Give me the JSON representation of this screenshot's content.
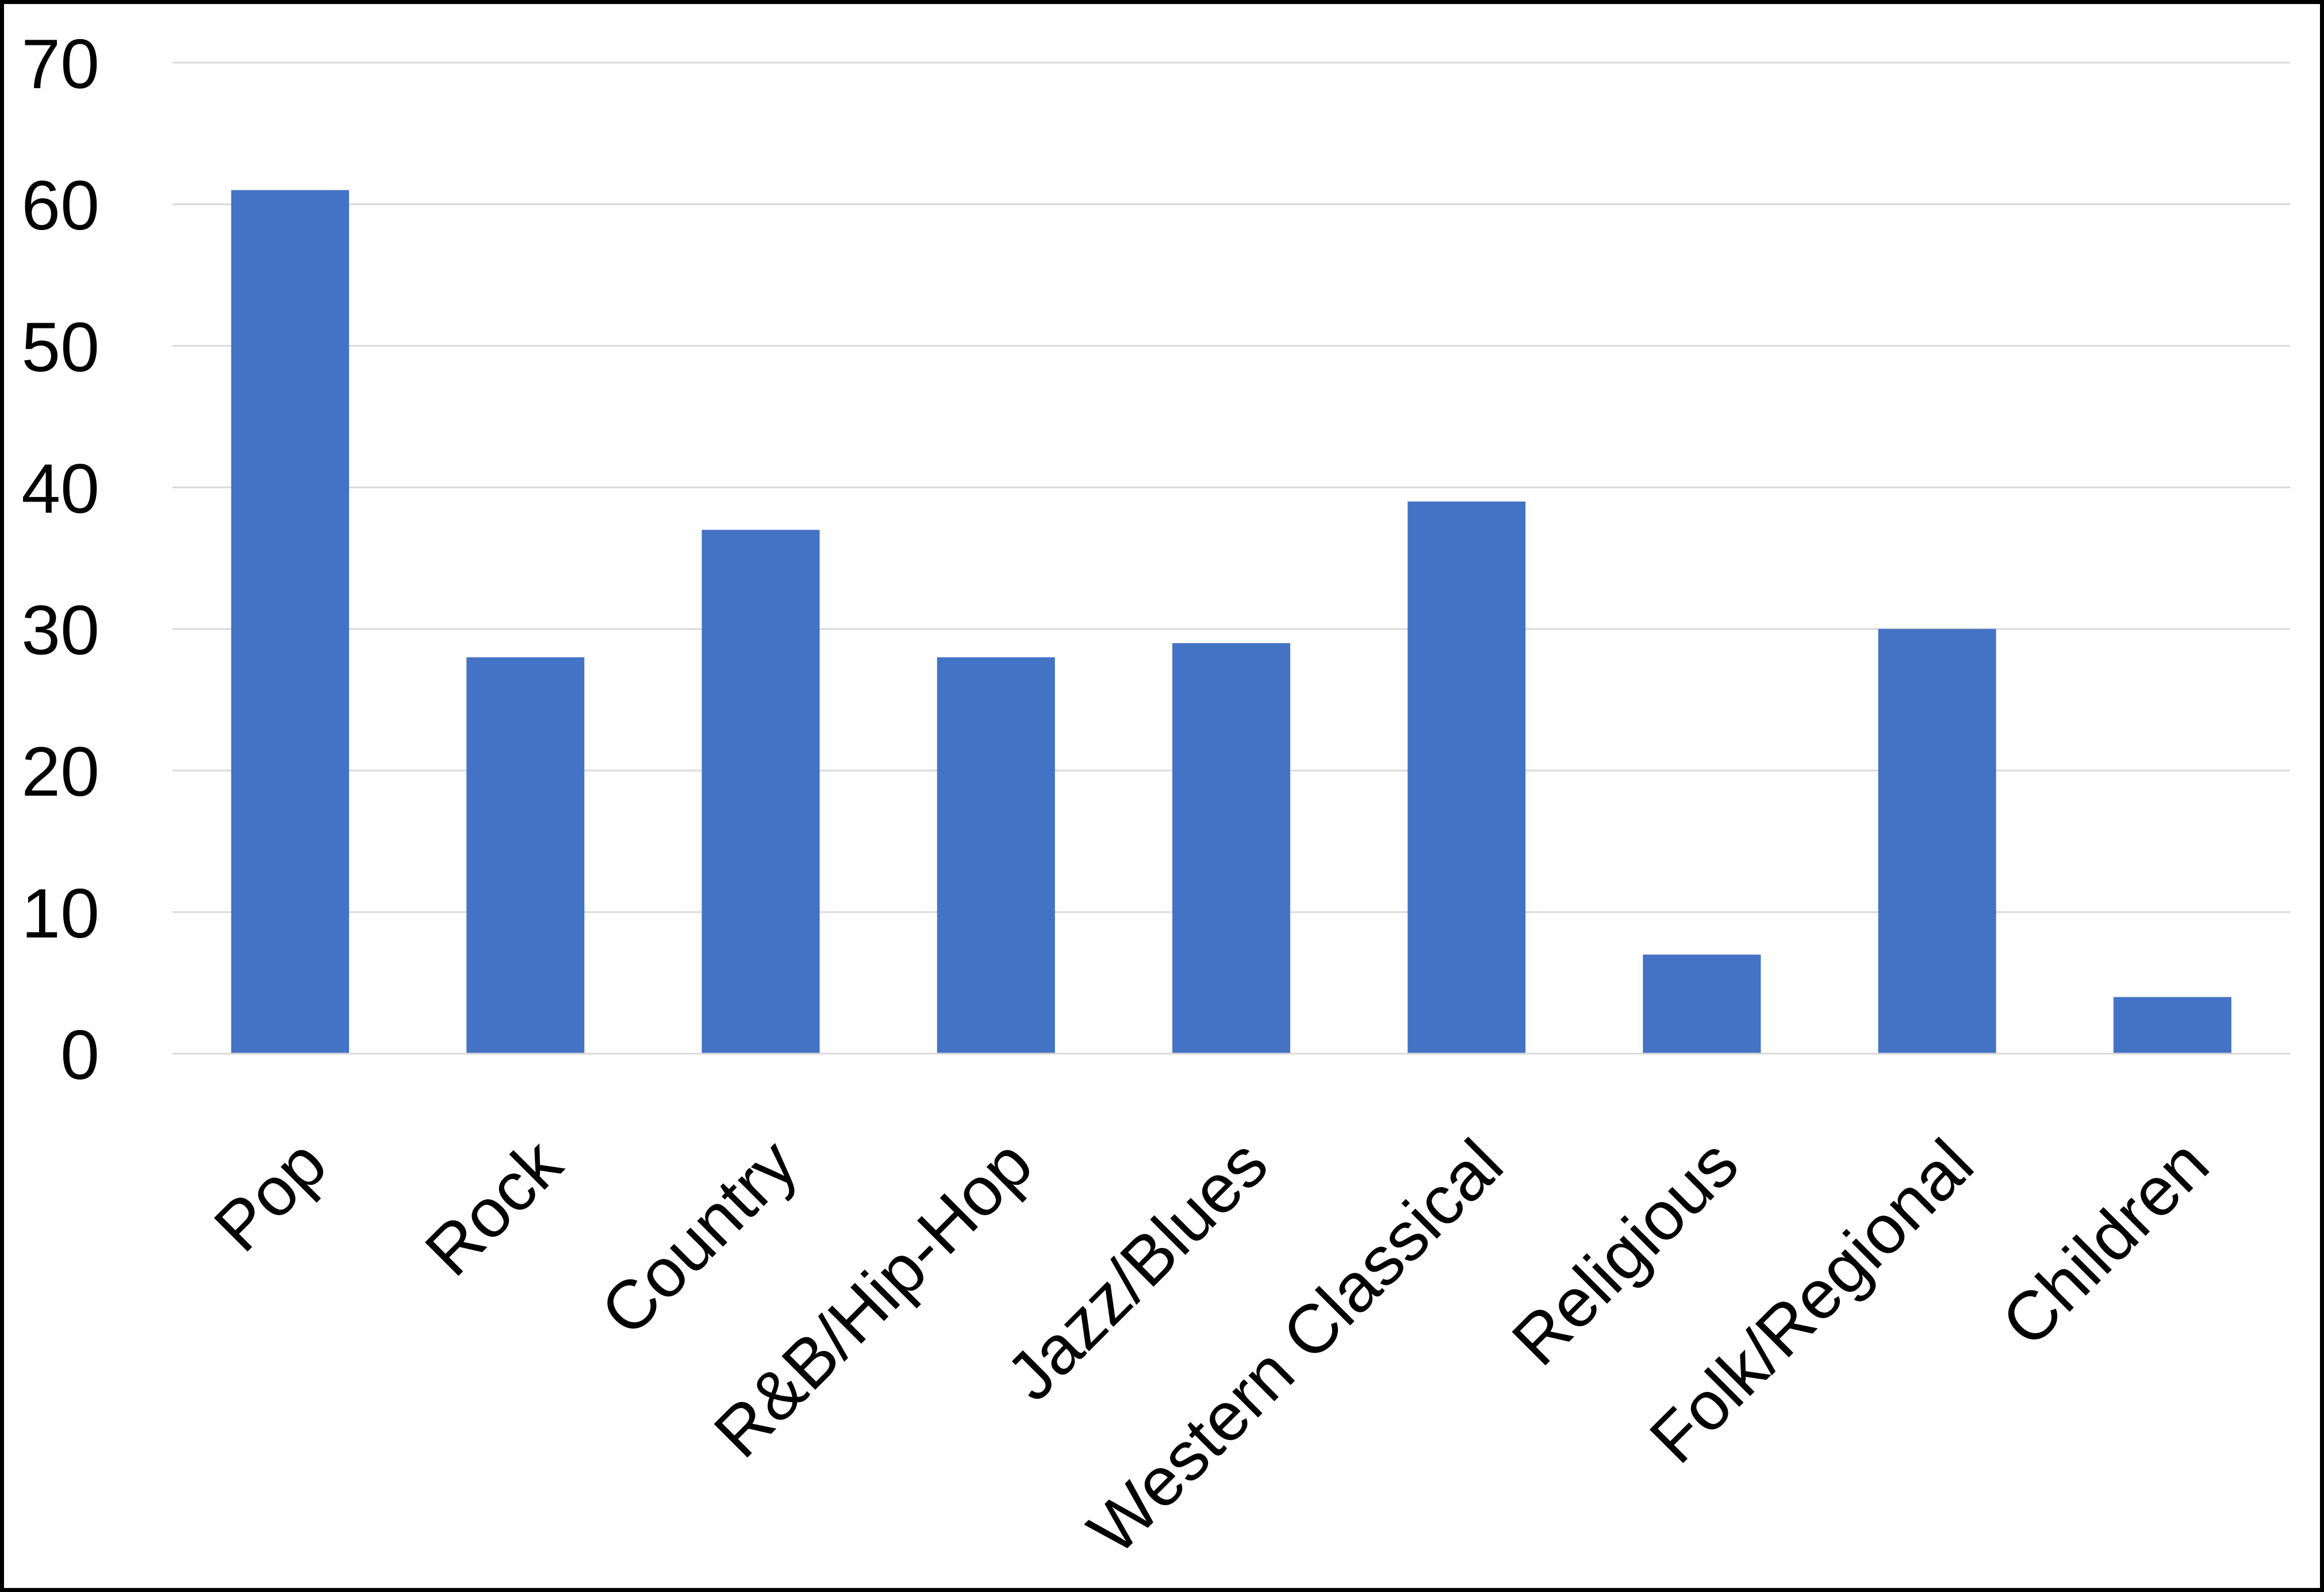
{
  "chart_data": {
    "type": "bar",
    "categories": [
      "Pop",
      "Rock",
      "Country",
      "R&B/Hip-Hop",
      "Jazz/Blues",
      "Western Classical",
      "Religious",
      "Folk/Regional",
      "Children"
    ],
    "values": [
      61,
      28,
      37,
      28,
      29,
      39,
      7,
      30,
      4
    ],
    "title": "",
    "xlabel": "",
    "ylabel": "",
    "ylim": [
      0,
      70
    ],
    "yticks": [
      0,
      10,
      20,
      30,
      40,
      50,
      60,
      70
    ],
    "grid": true,
    "legend_position": "none",
    "bar_color": "#4472C4",
    "gridline_color": "#D9D9D9",
    "axis_line_color": "#D9D9D9",
    "tick_label_color": "#000000",
    "frame_border_color": "#000000"
  }
}
